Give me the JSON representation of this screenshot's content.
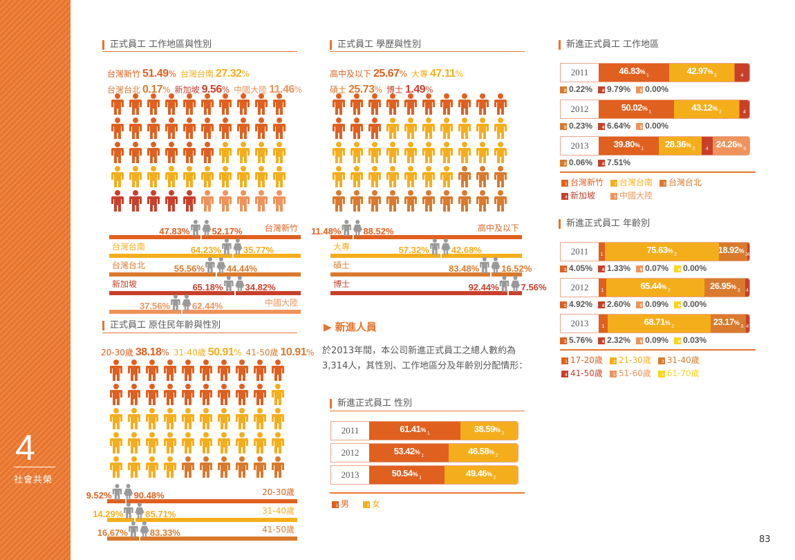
{
  "colors": {
    "c1": "#e0601f",
    "c2": "#f5ae1b",
    "c3": "#d97a2d",
    "c4": "#c9402a",
    "c5": "#f0935a",
    "c6": "#ffd21e",
    "bar_grey": "#999999"
  },
  "sidebar": {
    "chapter": "4",
    "title": "社會共榮"
  },
  "page_number": "83",
  "region": {
    "title": "正式員工 工作地區與性別",
    "legend": [
      {
        "label": "台灣新竹",
        "value": "51.49",
        "color": "c1"
      },
      {
        "label": "台灣台南",
        "value": "27.32",
        "color": "c2"
      },
      {
        "label": "台灣台北",
        "value": "0.17",
        "color": "c3"
      },
      {
        "label": "新加坡",
        "value": "9.56",
        "color": "c4"
      },
      {
        "label": "中國大陸",
        "value": "11.46",
        "color": "c5"
      }
    ],
    "gender": [
      {
        "label": "台灣新竹",
        "male": "47.83",
        "female": "52.17",
        "color": "c1",
        "side": "right"
      },
      {
        "label": "台灣台南",
        "male": "64.23",
        "female": "35.77",
        "color": "c2",
        "side": "left"
      },
      {
        "label": "台灣台北",
        "male": "55.56",
        "female": "44.44",
        "color": "c3",
        "side": "left"
      },
      {
        "label": "新加坡",
        "male": "65.18",
        "female": "34.82",
        "color": "c4",
        "side": "left"
      },
      {
        "label": "中國大陸",
        "male": "37.56",
        "female": "62.44",
        "color": "c5",
        "side": "right"
      }
    ]
  },
  "edu": {
    "title": "正式員工 學歷與性別",
    "legend": [
      {
        "label": "高中及以下",
        "value": "25.67",
        "color": "c1"
      },
      {
        "label": "大專",
        "value": "47.11",
        "color": "c2"
      },
      {
        "label": "碩士",
        "value": "25.73",
        "color": "c3"
      },
      {
        "label": "博士",
        "value": "1.49",
        "color": "c4"
      }
    ],
    "gender": [
      {
        "label": "高中及以下",
        "male": "11.48",
        "female": "88.52",
        "color": "c1",
        "side": "right"
      },
      {
        "label": "大專",
        "male": "57.32",
        "female": "42.68",
        "color": "c2",
        "side": "left"
      },
      {
        "label": "碩士",
        "male": "83.48",
        "female": "16.52",
        "color": "c3",
        "side": "left"
      },
      {
        "label": "博士",
        "male": "92.44",
        "female": "7.56",
        "color": "c4",
        "side": "left"
      }
    ]
  },
  "native": {
    "title": "正式員工 原住民年齡與性別",
    "legend": [
      {
        "label": "20-30歲",
        "value": "38.18",
        "color": "c1"
      },
      {
        "label": "31-40歲",
        "value": "50.91",
        "color": "c2"
      },
      {
        "label": "41-50歲",
        "value": "10.91",
        "color": "c3"
      }
    ],
    "gender": [
      {
        "label": "20-30歲",
        "male": "9.52",
        "female": "90.48",
        "color": "c1",
        "side": "right"
      },
      {
        "label": "31-40歲",
        "male": "14.29",
        "female": "85.71",
        "color": "c2",
        "side": "right"
      },
      {
        "label": "41-50歲",
        "male": "16.67",
        "female": "83.33",
        "color": "c3",
        "side": "right"
      }
    ]
  },
  "new_hires": {
    "heading": "新進人員",
    "paragraph": "於2013年間，本公司新進正式員工之總人數約為3,314人，其性別、工作地區分及年齡別分配情形：",
    "gender_title": "新進正式員工 性別",
    "gender_legend": [
      {
        "label": "男",
        "color": "c1",
        "ix": "1"
      },
      {
        "label": "女",
        "color": "c2",
        "ix": "2"
      }
    ],
    "gender_years": [
      {
        "year": "2011",
        "segs": [
          {
            "v": "61.41",
            "c": "c1",
            "ix": "1"
          },
          {
            "v": "38.59",
            "c": "c2",
            "ix": "2"
          }
        ]
      },
      {
        "year": "2012",
        "segs": [
          {
            "v": "53.42",
            "c": "c1",
            "ix": "1"
          },
          {
            "v": "46.58",
            "c": "c2",
            "ix": "2"
          }
        ]
      },
      {
        "year": "2013",
        "segs": [
          {
            "v": "50.54",
            "c": "c1",
            "ix": "1"
          },
          {
            "v": "49.46",
            "c": "c2",
            "ix": "2"
          }
        ]
      }
    ],
    "region_title": "新進正式員工 工作地區",
    "region_legend": [
      {
        "label": "台灣新竹",
        "color": "c1",
        "ix": "1"
      },
      {
        "label": "台灣台南",
        "color": "c2",
        "ix": "2"
      },
      {
        "label": "台灣台北",
        "color": "c3",
        "ix": "3"
      },
      {
        "label": "新加坡",
        "color": "c4",
        "ix": "4"
      },
      {
        "label": "中國大陸",
        "color": "c5",
        "ix": "5"
      }
    ],
    "region_years": [
      {
        "year": "2011",
        "segs": [
          {
            "v": "46.83",
            "c": "c1",
            "ix": "1",
            "show": true
          },
          {
            "v": "42.97",
            "c": "c2",
            "ix": "2",
            "show": true
          },
          {
            "v": "0.22",
            "c": "c3",
            "ix": "3"
          },
          {
            "v": "9.79",
            "c": "c4",
            "ix": "4"
          },
          {
            "v": "0.00",
            "c": "c5",
            "ix": "5"
          }
        ],
        "below": [
          {
            "v": "0.22",
            "c": "c3",
            "ix": "3"
          },
          {
            "v": "9.79",
            "c": "c4",
            "ix": "4"
          },
          {
            "v": "0.00",
            "c": "c5",
            "ix": "5"
          }
        ]
      },
      {
        "year": "2012",
        "segs": [
          {
            "v": "50.02",
            "c": "c1",
            "ix": "1",
            "show": true
          },
          {
            "v": "43.12",
            "c": "c2",
            "ix": "2",
            "show": true
          },
          {
            "v": "0.23",
            "c": "c3",
            "ix": "3"
          },
          {
            "v": "6.64",
            "c": "c4",
            "ix": "4"
          },
          {
            "v": "0.00",
            "c": "c5",
            "ix": "5"
          }
        ],
        "below": [
          {
            "v": "0.23",
            "c": "c3",
            "ix": "3"
          },
          {
            "v": "6.64",
            "c": "c4",
            "ix": "4"
          },
          {
            "v": "0.00",
            "c": "c5",
            "ix": "5"
          }
        ]
      },
      {
        "year": "2013",
        "segs": [
          {
            "v": "39.80",
            "c": "c1",
            "ix": "1",
            "show": true
          },
          {
            "v": "28.36",
            "c": "c2",
            "ix": "2",
            "show": true
          },
          {
            "v": "0.06",
            "c": "c3",
            "ix": "3"
          },
          {
            "v": "7.51",
            "c": "c4",
            "ix": "4"
          },
          {
            "v": "24.26",
            "c": "c5",
            "ix": "5",
            "show": true
          }
        ],
        "below": [
          {
            "v": "0.06",
            "c": "c3",
            "ix": "3"
          },
          {
            "v": "7.51",
            "c": "c4",
            "ix": "4"
          }
        ]
      }
    ],
    "age_title": "新進正式員工 年齡別",
    "age_legend": [
      {
        "label": "17-20歲",
        "color": "c1",
        "ix": "1"
      },
      {
        "label": "21-30歲",
        "color": "c2",
        "ix": "2"
      },
      {
        "label": "31-40歲",
        "color": "c3",
        "ix": "3"
      },
      {
        "label": "41-50歲",
        "color": "c4",
        "ix": "4"
      },
      {
        "label": "51-60歲",
        "color": "c5",
        "ix": "5"
      },
      {
        "label": "61-70歲",
        "color": "c6",
        "ix": "6"
      }
    ],
    "age_years": [
      {
        "year": "2011",
        "segs": [
          {
            "v": "4.05",
            "c": "c1",
            "ix": "1"
          },
          {
            "v": "75.63",
            "c": "c2",
            "ix": "2",
            "show": true
          },
          {
            "v": "18.92",
            "c": "c3",
            "ix": "3",
            "show": true
          },
          {
            "v": "1.33",
            "c": "c4",
            "ix": "4"
          },
          {
            "v": "0.07",
            "c": "c5",
            "ix": "5"
          },
          {
            "v": "0.00",
            "c": "c6",
            "ix": "6"
          }
        ],
        "below": [
          {
            "v": "4.05",
            "c": "c1",
            "ix": "1"
          },
          {
            "v": "1.33",
            "c": "c4",
            "ix": "4"
          },
          {
            "v": "0.07",
            "c": "c5",
            "ix": "5"
          },
          {
            "v": "0.00",
            "c": "c6",
            "ix": "6"
          }
        ]
      },
      {
        "year": "2012",
        "segs": [
          {
            "v": "4.92",
            "c": "c1",
            "ix": "1"
          },
          {
            "v": "65.44",
            "c": "c2",
            "ix": "2",
            "show": true
          },
          {
            "v": "26.95",
            "c": "c3",
            "ix": "3",
            "show": true
          },
          {
            "v": "2.60",
            "c": "c4",
            "ix": "4"
          },
          {
            "v": "0.09",
            "c": "c5",
            "ix": "5"
          },
          {
            "v": "0.00",
            "c": "c6",
            "ix": "6"
          }
        ],
        "below": [
          {
            "v": "4.92",
            "c": "c1",
            "ix": "1"
          },
          {
            "v": "2.60",
            "c": "c4",
            "ix": "4"
          },
          {
            "v": "0.09",
            "c": "c5",
            "ix": "5"
          },
          {
            "v": "0.00",
            "c": "c6",
            "ix": "6"
          }
        ]
      },
      {
        "year": "2013",
        "segs": [
          {
            "v": "5.76",
            "c": "c1",
            "ix": "1"
          },
          {
            "v": "68.71",
            "c": "c2",
            "ix": "2",
            "show": true
          },
          {
            "v": "23.17",
            "c": "c3",
            "ix": "3",
            "show": true
          },
          {
            "v": "2.32",
            "c": "c4",
            "ix": "4"
          },
          {
            "v": "0.09",
            "c": "c5",
            "ix": "5"
          },
          {
            "v": "0.03",
            "c": "c6",
            "ix": "6"
          }
        ],
        "below": [
          {
            "v": "5.76",
            "c": "c1",
            "ix": "1"
          },
          {
            "v": "2.32",
            "c": "c4",
            "ix": "4"
          },
          {
            "v": "0.09",
            "c": "c5",
            "ix": "5"
          },
          {
            "v": "0.03",
            "c": "c6",
            "ix": "6"
          }
        ]
      }
    ]
  }
}
